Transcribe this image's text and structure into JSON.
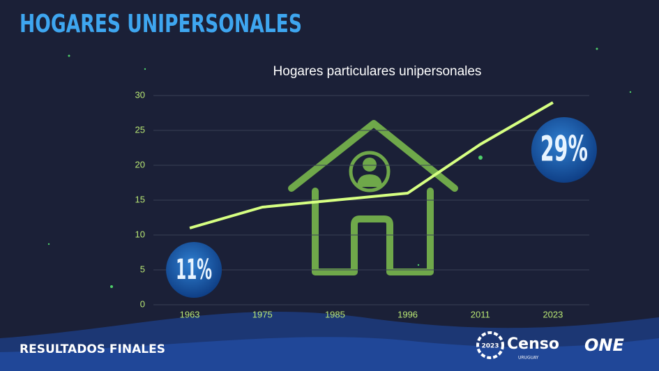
{
  "header": {
    "title": "HOGARES UNIPERSONALES"
  },
  "footer": {
    "text": "RESULTADOS FINALES",
    "logo_year": "2023",
    "logo_name": "Censo",
    "logo_country": "URUGUAY",
    "logo_org": "ONE"
  },
  "chart_data": {
    "type": "line",
    "title": "Hogares particulares unipersonales",
    "categories": [
      "1963",
      "1975",
      "1985",
      "1996",
      "2011",
      "2023"
    ],
    "values": [
      11,
      14,
      15,
      16,
      23,
      29
    ],
    "value_labels": [
      "11%",
      null,
      null,
      null,
      null,
      "29%"
    ],
    "color": "#d6ff82",
    "ylim": [
      0,
      30
    ],
    "yticks": [
      0,
      5,
      10,
      15,
      20,
      25,
      30
    ],
    "grid": true
  }
}
